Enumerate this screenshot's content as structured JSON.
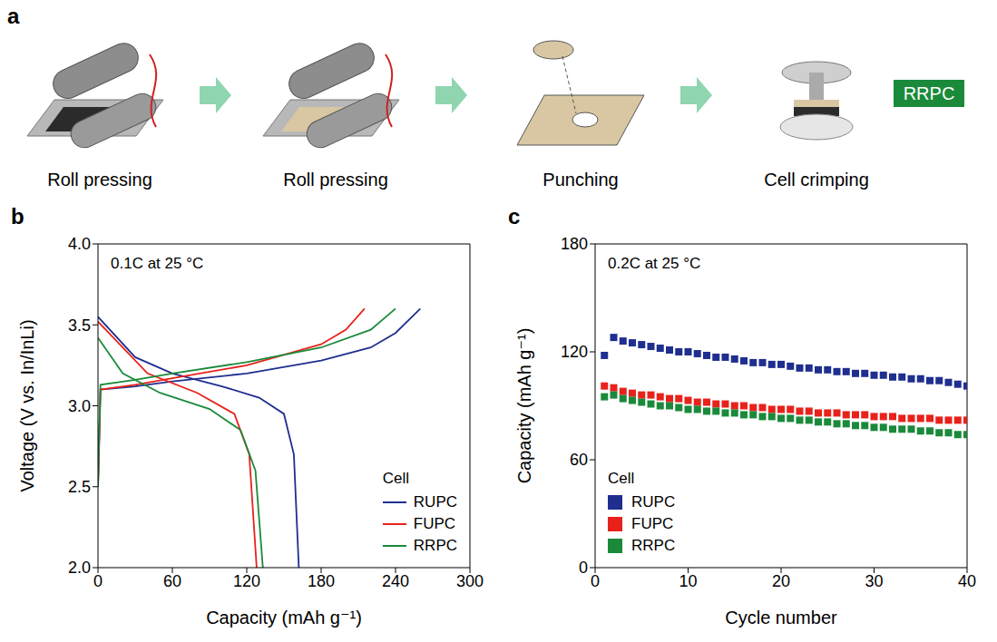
{
  "diagram": {
    "letter": "a",
    "steps": [
      "Roll pressing",
      "Roll pressing",
      "Punching",
      "Cell crimping"
    ],
    "badge": "RRPC",
    "badge_color": "#1a8a3a"
  },
  "chart_data": [
    {
      "letter": "b",
      "type": "line",
      "annotation": "0.1C at 25 °C",
      "x_label": "Capacity (mAh g⁻¹)",
      "y_label": "Voltage (V vs. In/InLi)",
      "xlim": [
        0,
        300
      ],
      "xticks": [
        0,
        60,
        120,
        180,
        240,
        300
      ],
      "ylim": [
        2,
        4
      ],
      "yticks": [
        {
          "value": 2,
          "label": "2.0"
        },
        {
          "value": 2.5,
          "label": "2.5"
        },
        {
          "value": 3,
          "label": "3.0"
        },
        {
          "value": 3.5,
          "label": "3.5"
        },
        {
          "value": 4,
          "label": "4.0"
        }
      ],
      "legend_title": "Cell",
      "legend": "lower right",
      "series": [
        {
          "name": "RUPC",
          "color": "#1f2f8f",
          "curves": [
            {
              "x": [
                0,
                2,
                30,
                60,
                120,
                180,
                220,
                240,
                260
              ],
              "values": [
                2.5,
                3.1,
                3.12,
                3.15,
                3.2,
                3.28,
                3.36,
                3.45,
                3.6
              ]
            },
            {
              "x": [
                0,
                30,
                60,
                100,
                130,
                150,
                158,
                162
              ],
              "values": [
                3.55,
                3.3,
                3.2,
                3.12,
                3.05,
                2.95,
                2.7,
                2.0
              ]
            }
          ]
        },
        {
          "name": "FUPC",
          "color": "#e8221b",
          "curves": [
            {
              "x": [
                0,
                2,
                30,
                60,
                120,
                180,
                200,
                215
              ],
              "values": [
                2.5,
                3.1,
                3.13,
                3.17,
                3.25,
                3.38,
                3.47,
                3.6
              ]
            },
            {
              "x": [
                0,
                40,
                80,
                110,
                122,
                128
              ],
              "values": [
                3.52,
                3.2,
                3.08,
                2.95,
                2.7,
                2.0
              ]
            }
          ]
        },
        {
          "name": "RRPC",
          "color": "#1a8a3a",
          "curves": [
            {
              "x": [
                0,
                2,
                30,
                60,
                120,
                180,
                220,
                240
              ],
              "values": [
                2.5,
                3.13,
                3.16,
                3.2,
                3.27,
                3.36,
                3.47,
                3.6
              ]
            },
            {
              "x": [
                0,
                20,
                50,
                90,
                115,
                127,
                133
              ],
              "values": [
                3.42,
                3.2,
                3.08,
                2.98,
                2.85,
                2.6,
                2.0
              ]
            }
          ]
        }
      ]
    },
    {
      "letter": "c",
      "type": "scatter",
      "annotation": "0.2C at 25 °C",
      "x_label": "Cycle number",
      "y_label": "Capacity (mAh g⁻¹)",
      "xlim": [
        0,
        40
      ],
      "xticks": [
        0,
        10,
        20,
        30,
        40
      ],
      "ylim": [
        0,
        180
      ],
      "yticks": [
        0,
        60,
        120,
        180
      ],
      "legend_title": "Cell",
      "legend": "lower left",
      "marker": "square",
      "x": [
        1,
        2,
        3,
        4,
        5,
        6,
        7,
        8,
        9,
        10,
        11,
        12,
        13,
        14,
        15,
        16,
        17,
        18,
        19,
        20,
        21,
        22,
        23,
        24,
        25,
        26,
        27,
        28,
        29,
        30,
        31,
        32,
        33,
        34,
        35,
        36,
        37,
        38,
        39,
        40
      ],
      "series": [
        {
          "name": "RUPC",
          "color": "#1f2f8f",
          "values": [
            118,
            128,
            126,
            125,
            124,
            123,
            122,
            121,
            120,
            120,
            119,
            118,
            117,
            117,
            116,
            115,
            114,
            114,
            113,
            113,
            112,
            111,
            111,
            110,
            110,
            109,
            109,
            108,
            108,
            107,
            107,
            106,
            106,
            105,
            105,
            104,
            104,
            103,
            102,
            101
          ]
        },
        {
          "name": "FUPC",
          "color": "#e8221b",
          "values": [
            101,
            100,
            98,
            97,
            96,
            96,
            95,
            94,
            94,
            93,
            92,
            92,
            91,
            91,
            90,
            90,
            89,
            89,
            88,
            88,
            88,
            87,
            87,
            86,
            86,
            86,
            85,
            85,
            85,
            84,
            84,
            84,
            83,
            83,
            83,
            83,
            82,
            82,
            82,
            82
          ]
        },
        {
          "name": "RRPC",
          "color": "#1a8a3a",
          "values": [
            95,
            96,
            94,
            93,
            92,
            91,
            90,
            90,
            89,
            88,
            88,
            87,
            87,
            86,
            86,
            85,
            85,
            84,
            84,
            83,
            83,
            82,
            82,
            81,
            81,
            80,
            80,
            79,
            79,
            78,
            78,
            77,
            77,
            77,
            76,
            76,
            75,
            75,
            74,
            74
          ]
        }
      ]
    }
  ]
}
